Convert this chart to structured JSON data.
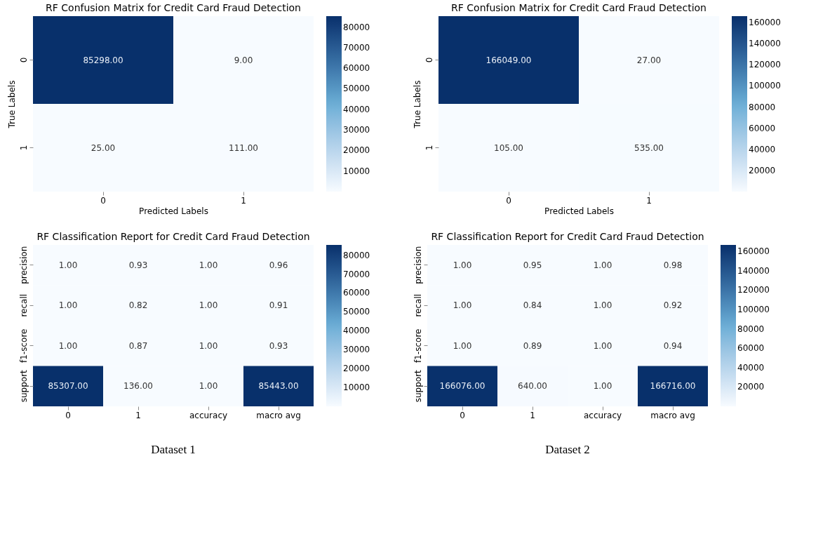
{
  "chart_data": [
    {
      "type": "heatmap",
      "title": "RF Confusion Matrix for Credit Card Fraud Detection",
      "xlabel": "Predicted Labels",
      "ylabel": "True Labels",
      "categories": [
        "0",
        "1"
      ],
      "y_categories": [
        "0",
        "1"
      ],
      "cells": [
        [
          85298,
          9
        ],
        [
          25,
          111
        ]
      ],
      "cell_labels": [
        [
          "85298.00",
          "9.00"
        ],
        [
          "25.00",
          "111.00"
        ]
      ],
      "clim": [
        9,
        85298
      ],
      "cticks": [
        10000,
        20000,
        30000,
        40000,
        50000,
        60000,
        70000,
        80000
      ]
    },
    {
      "type": "heatmap",
      "title": "RF Confusion Matrix for Credit Card Fraud Detection",
      "xlabel": "Predicted Labels",
      "ylabel": "True Labels",
      "categories": [
        "0",
        "1"
      ],
      "y_categories": [
        "0",
        "1"
      ],
      "cells": [
        [
          166049,
          27
        ],
        [
          105,
          535
        ]
      ],
      "cell_labels": [
        [
          "166049.00",
          "27.00"
        ],
        [
          "105.00",
          "535.00"
        ]
      ],
      "clim": [
        27,
        166049
      ],
      "cticks": [
        20000,
        40000,
        60000,
        80000,
        100000,
        120000,
        140000,
        160000
      ]
    },
    {
      "type": "heatmap",
      "title": "RF Classification Report for Credit Card Fraud Detection",
      "categories": [
        "0",
        "1",
        "accuracy",
        "macro avg"
      ],
      "y_categories": [
        "precision",
        "recall",
        "f1-score",
        "support"
      ],
      "cells": [
        [
          1.0,
          0.93,
          1.0,
          0.96
        ],
        [
          1.0,
          0.82,
          1.0,
          0.91
        ],
        [
          1.0,
          0.87,
          1.0,
          0.93
        ],
        [
          85307,
          136,
          1.0,
          85443
        ]
      ],
      "cell_labels": [
        [
          "1.00",
          "0.93",
          "1.00",
          "0.96"
        ],
        [
          "1.00",
          "0.82",
          "1.00",
          "0.91"
        ],
        [
          "1.00",
          "0.87",
          "1.00",
          "0.93"
        ],
        [
          "85307.00",
          "136.00",
          "1.00",
          "85443.00"
        ]
      ],
      "clim": [
        0.82,
        85443
      ],
      "cticks": [
        10000,
        20000,
        30000,
        40000,
        50000,
        60000,
        70000,
        80000
      ],
      "annotations": [
        "Dataset 1"
      ]
    },
    {
      "type": "heatmap",
      "title": "RF Classification Report for Credit Card Fraud Detection",
      "categories": [
        "0",
        "1",
        "accuracy",
        "macro avg"
      ],
      "y_categories": [
        "precision",
        "recall",
        "f1-score",
        "support"
      ],
      "cells": [
        [
          1.0,
          0.95,
          1.0,
          0.98
        ],
        [
          1.0,
          0.84,
          1.0,
          0.92
        ],
        [
          1.0,
          0.89,
          1.0,
          0.94
        ],
        [
          166076,
          640,
          1.0,
          166716
        ]
      ],
      "cell_labels": [
        [
          "1.00",
          "0.95",
          "1.00",
          "0.98"
        ],
        [
          "1.00",
          "0.84",
          "1.00",
          "0.92"
        ],
        [
          "1.00",
          "0.89",
          "1.00",
          "0.94"
        ],
        [
          "166076.00",
          "640.00",
          "1.00",
          "166716.00"
        ]
      ],
      "clim": [
        0.84,
        166716
      ],
      "cticks": [
        20000,
        40000,
        60000,
        80000,
        100000,
        120000,
        140000,
        160000
      ],
      "annotations": [
        "Dataset 2"
      ]
    }
  ]
}
